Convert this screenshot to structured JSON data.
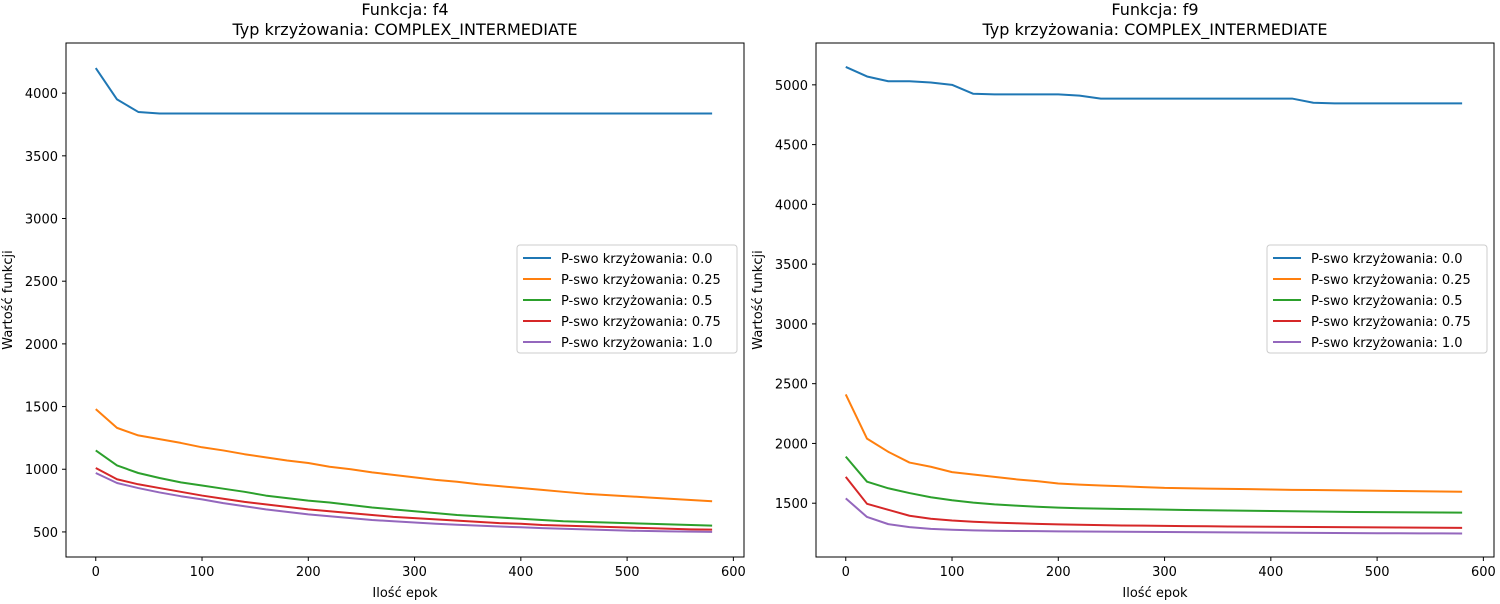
{
  "chart_data": [
    {
      "type": "line",
      "title": "Funkcja: f4",
      "subtitle": "Typ krzyżowania: COMPLEX_INTERMEDIATE",
      "xlabel": "Ilość epok",
      "ylabel": "Wartość funkcji",
      "xlim": [
        -28,
        610
      ],
      "ylim": [
        300,
        4400
      ],
      "xticks": [
        0,
        100,
        200,
        300,
        400,
        500,
        600
      ],
      "yticks": [
        500,
        1000,
        1500,
        2000,
        2500,
        3000,
        3500,
        4000
      ],
      "grid": false,
      "legend_position": "center-right",
      "x": [
        0,
        20,
        40,
        60,
        80,
        100,
        120,
        140,
        160,
        180,
        200,
        220,
        240,
        260,
        280,
        300,
        320,
        340,
        360,
        380,
        400,
        420,
        440,
        460,
        480,
        500,
        520,
        540,
        560,
        580
      ],
      "series": [
        {
          "name": "P-swo krzyżowania: 0.0",
          "color": "#1f77b4",
          "values": [
            4200,
            3950,
            3850,
            3838,
            3838,
            3838,
            3838,
            3838,
            3838,
            3838,
            3838,
            3838,
            3838,
            3838,
            3838,
            3838,
            3838,
            3838,
            3838,
            3838,
            3838,
            3838,
            3838,
            3838,
            3838,
            3838,
            3838,
            3838,
            3838,
            3838
          ]
        },
        {
          "name": "P-swo krzyżowania: 0.25",
          "color": "#ff7f0e",
          "values": [
            1480,
            1330,
            1270,
            1240,
            1210,
            1175,
            1150,
            1120,
            1095,
            1070,
            1050,
            1020,
            1000,
            975,
            955,
            935,
            915,
            900,
            880,
            865,
            850,
            835,
            820,
            805,
            795,
            785,
            775,
            765,
            755,
            745
          ]
        },
        {
          "name": "P-swo krzyżowania: 0.5",
          "color": "#2ca02c",
          "values": [
            1150,
            1030,
            970,
            930,
            895,
            870,
            845,
            820,
            790,
            770,
            750,
            735,
            715,
            695,
            680,
            665,
            650,
            635,
            625,
            615,
            605,
            595,
            585,
            580,
            575,
            570,
            565,
            560,
            555,
            550
          ]
        },
        {
          "name": "P-swo krzyżowania: 0.75",
          "color": "#d62728",
          "values": [
            1010,
            920,
            880,
            850,
            820,
            790,
            765,
            740,
            720,
            700,
            680,
            665,
            650,
            635,
            620,
            610,
            600,
            590,
            580,
            570,
            565,
            555,
            550,
            545,
            540,
            535,
            530,
            525,
            520,
            518
          ]
        },
        {
          "name": "P-swo krzyżowania: 1.0",
          "color": "#9467bd",
          "values": [
            970,
            890,
            850,
            815,
            785,
            760,
            730,
            705,
            680,
            660,
            640,
            625,
            610,
            595,
            585,
            575,
            565,
            557,
            550,
            543,
            537,
            530,
            525,
            520,
            515,
            510,
            507,
            504,
            502,
            500
          ]
        }
      ]
    },
    {
      "type": "line",
      "title": "Funkcja: f9",
      "subtitle": "Typ krzyżowania: COMPLEX_INTERMEDIATE",
      "xlabel": "Ilość epok",
      "ylabel": "Wartość funkcji",
      "xlim": [
        -28,
        610
      ],
      "ylim": [
        1050,
        5350
      ],
      "xticks": [
        0,
        100,
        200,
        300,
        400,
        500,
        600
      ],
      "yticks": [
        1500,
        2000,
        2500,
        3000,
        3500,
        4000,
        4500,
        5000
      ],
      "grid": false,
      "legend_position": "center-right",
      "x": [
        0,
        20,
        40,
        60,
        80,
        100,
        120,
        140,
        160,
        180,
        200,
        220,
        240,
        260,
        280,
        300,
        320,
        340,
        360,
        380,
        400,
        420,
        440,
        460,
        480,
        500,
        520,
        540,
        560,
        580
      ],
      "series": [
        {
          "name": "P-swo krzyżowania: 0.0",
          "color": "#1f77b4",
          "values": [
            5150,
            5070,
            5030,
            5030,
            5020,
            5000,
            4925,
            4920,
            4920,
            4920,
            4920,
            4910,
            4885,
            4885,
            4885,
            4885,
            4885,
            4885,
            4885,
            4885,
            4885,
            4885,
            4850,
            4845,
            4845,
            4845,
            4845,
            4845,
            4845,
            4845
          ]
        },
        {
          "name": "P-swo krzyżowania: 0.25",
          "color": "#ff7f0e",
          "values": [
            2410,
            2040,
            1930,
            1840,
            1805,
            1760,
            1740,
            1720,
            1700,
            1685,
            1665,
            1655,
            1648,
            1642,
            1635,
            1628,
            1625,
            1622,
            1620,
            1618,
            1615,
            1612,
            1610,
            1608,
            1606,
            1604,
            1602,
            1600,
            1598,
            1596
          ]
        },
        {
          "name": "P-swo krzyżowania: 0.5",
          "color": "#2ca02c",
          "values": [
            1890,
            1680,
            1625,
            1585,
            1550,
            1525,
            1505,
            1490,
            1480,
            1470,
            1463,
            1458,
            1455,
            1452,
            1449,
            1446,
            1443,
            1441,
            1439,
            1437,
            1435,
            1433,
            1431,
            1429,
            1427,
            1425,
            1424,
            1423,
            1422,
            1421
          ]
        },
        {
          "name": "P-swo krzyżowania: 0.75",
          "color": "#d62728",
          "values": [
            1720,
            1495,
            1445,
            1395,
            1370,
            1355,
            1345,
            1338,
            1332,
            1327,
            1323,
            1320,
            1317,
            1314,
            1312,
            1310,
            1308,
            1307,
            1305,
            1304,
            1303,
            1302,
            1301,
            1300,
            1299,
            1298,
            1297,
            1296,
            1295,
            1294
          ]
        },
        {
          "name": "P-swo krzyżowania: 1.0",
          "color": "#9467bd",
          "values": [
            1540,
            1385,
            1325,
            1300,
            1285,
            1278,
            1273,
            1270,
            1268,
            1266,
            1264,
            1263,
            1262,
            1261,
            1260,
            1259,
            1258,
            1257,
            1256,
            1255,
            1254,
            1253,
            1252,
            1251,
            1250,
            1249,
            1249,
            1248,
            1248,
            1247
          ]
        }
      ]
    }
  ]
}
